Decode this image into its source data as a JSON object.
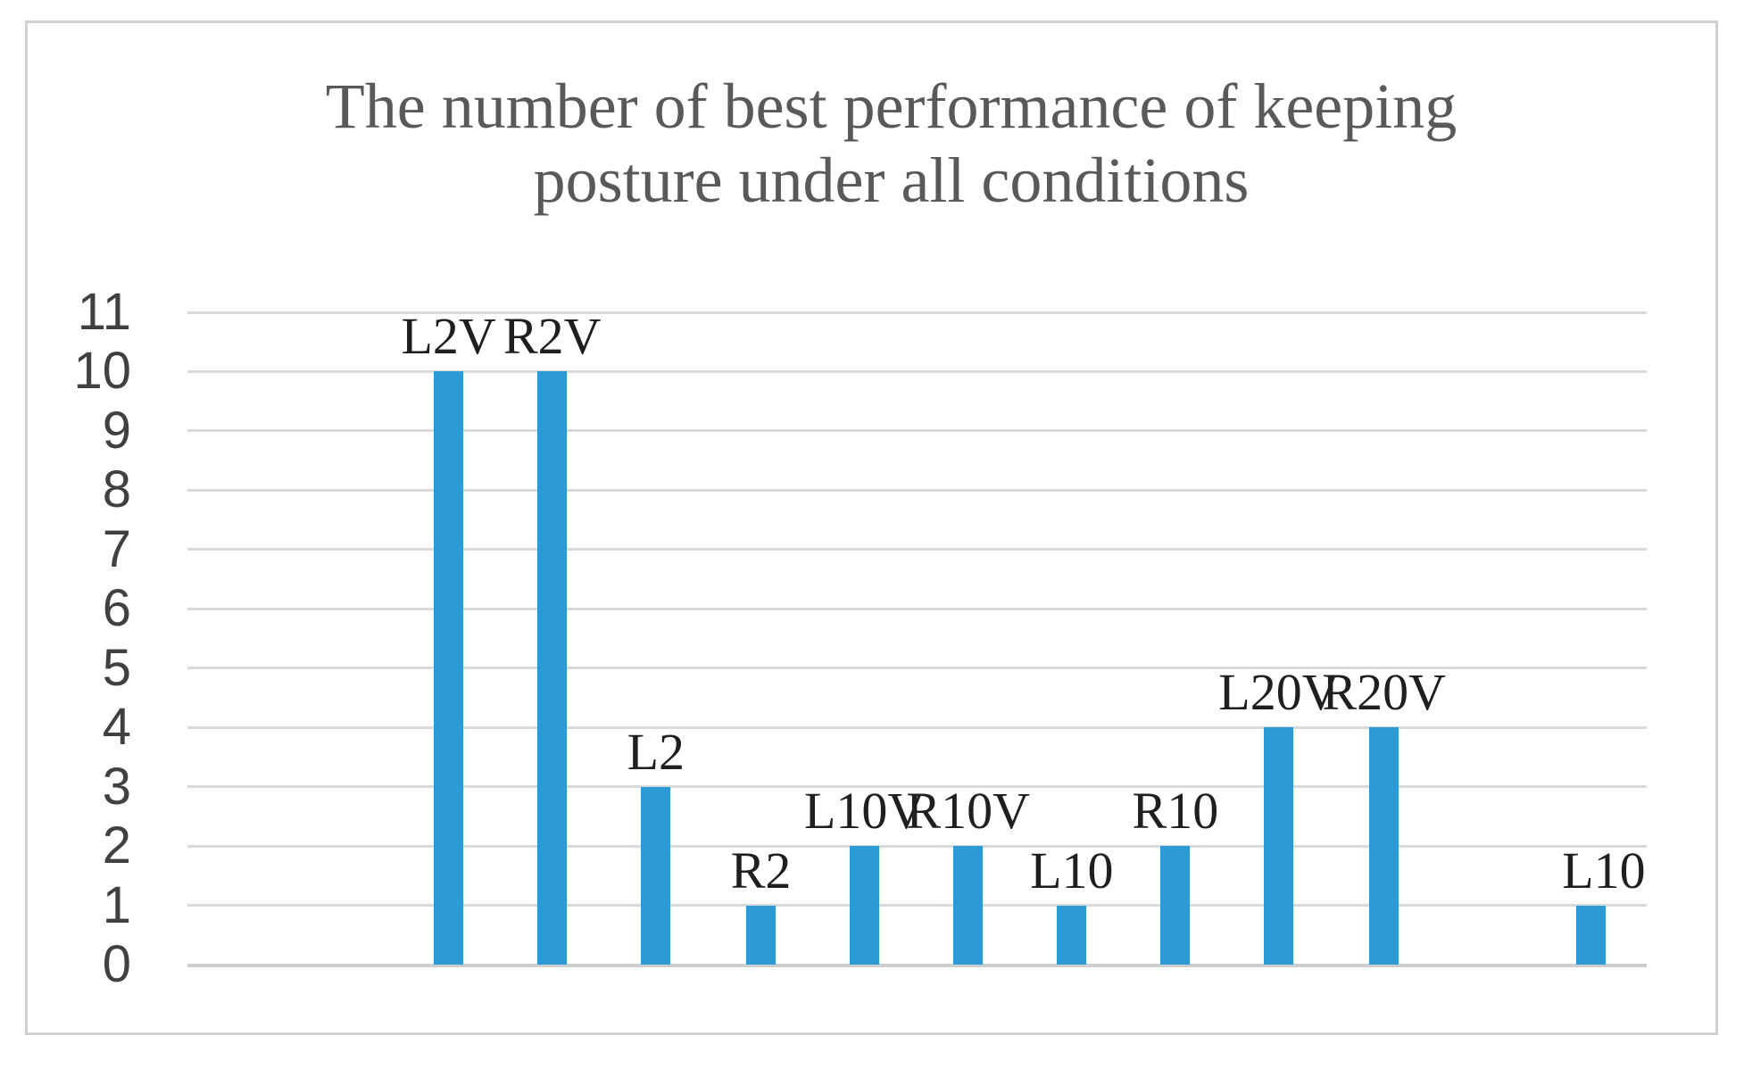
{
  "chart_data": {
    "type": "bar",
    "title": "The number of best performance of keeping posture under all conditions",
    "title_lines": [
      "The number of best performance of keeping",
      "posture under all conditions"
    ],
    "categories": [
      "L2V",
      "R2V",
      "L2",
      "R2",
      "L10V",
      "R10V",
      "L10",
      "R10",
      "L20V",
      "R20V",
      "L10"
    ],
    "values": [
      10,
      10,
      3,
      1,
      2,
      2,
      1,
      2,
      4,
      4,
      1
    ],
    "bar_labels": [
      "L2V",
      "R2V",
      "L2",
      "R2",
      "L10V",
      "R10V",
      "L10",
      "R10",
      "L20V",
      "R20V",
      "L10"
    ],
    "yticks": [
      0,
      1,
      2,
      3,
      4,
      5,
      6,
      7,
      8,
      9,
      10,
      11
    ],
    "ylim": [
      0,
      11
    ],
    "xlabel": "",
    "ylabel": "",
    "grid": "horizontal-only",
    "legend": "none",
    "colors": {
      "bar": "#2b9ad5",
      "gridline": "#d9d9d9",
      "title_text": "#595959",
      "axis_text": "#404040",
      "bar_label_text": "#1f1f1f",
      "frame_border": "#d0d0d0",
      "background": "#ffffff"
    }
  }
}
